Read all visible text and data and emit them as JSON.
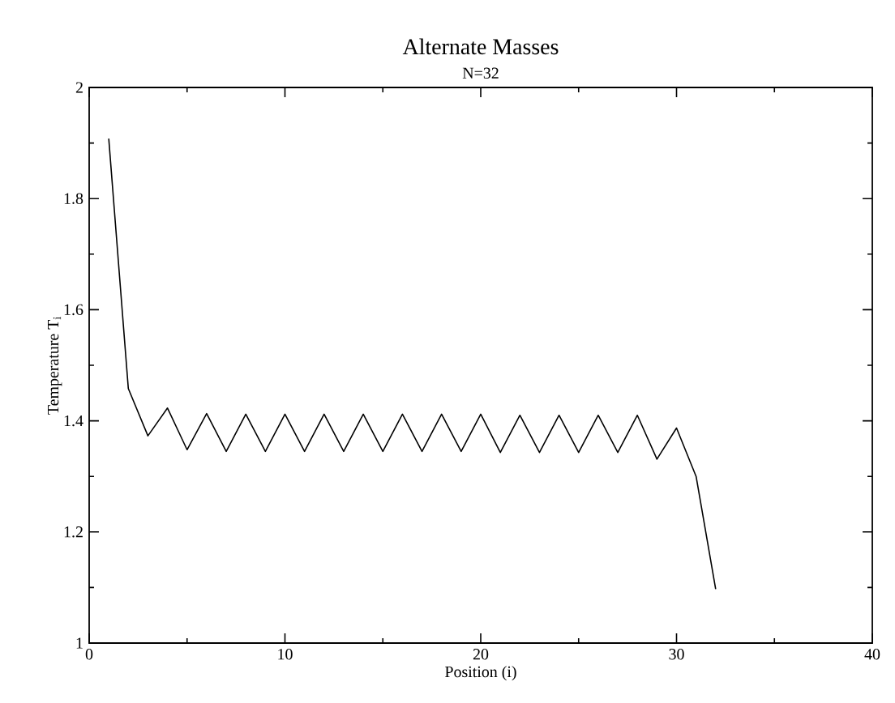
{
  "chart_data": {
    "type": "line",
    "title": "Alternate Masses",
    "subtitle": "N=32",
    "xlabel": "Position  (i)",
    "ylabel": "Temperature T$_{i}$",
    "x": [
      1,
      2,
      3,
      4,
      5,
      6,
      7,
      8,
      9,
      10,
      11,
      12,
      13,
      14,
      15,
      16,
      17,
      18,
      19,
      20,
      21,
      22,
      23,
      24,
      25,
      26,
      27,
      28,
      29,
      30,
      31,
      32
    ],
    "series": [
      {
        "color": "#000000",
        "values": [
          1.908,
          1.458,
          1.373,
          1.423,
          1.348,
          1.413,
          1.345,
          1.412,
          1.345,
          1.412,
          1.345,
          1.412,
          1.345,
          1.412,
          1.345,
          1.412,
          1.345,
          1.412,
          1.345,
          1.412,
          1.343,
          1.41,
          1.343,
          1.41,
          1.343,
          1.41,
          1.343,
          1.41,
          1.331,
          1.387,
          1.3,
          1.097
        ]
      }
    ],
    "xlim": [
      0,
      40
    ],
    "ylim": [
      1,
      2
    ],
    "xticks": [
      0,
      10,
      20,
      30,
      40
    ],
    "yticks": [
      1,
      1.2,
      1.4,
      1.6,
      1.8,
      2
    ],
    "grid": false,
    "marker": "none",
    "line_style": "solid"
  }
}
